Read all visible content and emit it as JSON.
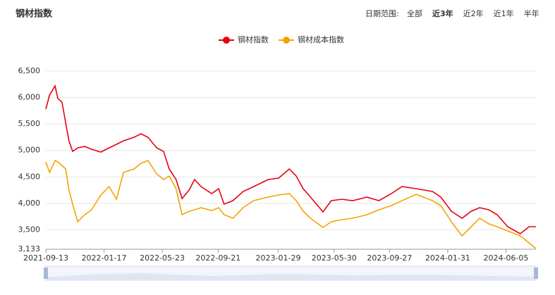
{
  "header": {
    "title": "钢材指数",
    "range_label": "日期范围:",
    "range_options": [
      "全部",
      "近3年",
      "近2年",
      "近1年",
      "半年"
    ],
    "active_option": 1
  },
  "chart_data": {
    "type": "line",
    "x": [
      "2021-09-13",
      "2021-09-21",
      "2021-10-03",
      "2021-10-09",
      "2021-10-18",
      "2021-10-26",
      "2021-11-02",
      "2021-11-10",
      "2021-11-21",
      "2021-12-06",
      "2021-12-21",
      "2022-01-10",
      "2022-01-28",
      "2022-02-13",
      "2022-02-28",
      "2022-03-23",
      "2022-04-07",
      "2022-04-22",
      "2022-05-11",
      "2022-05-26",
      "2022-06-07",
      "2022-06-22",
      "2022-07-05",
      "2022-07-20",
      "2022-08-01",
      "2022-08-15",
      "2022-09-07",
      "2022-09-22",
      "2022-10-04",
      "2022-10-23",
      "2022-11-14",
      "2022-12-07",
      "2023-01-07",
      "2023-01-30",
      "2023-02-22",
      "2023-03-09",
      "2023-03-24",
      "2023-04-09",
      "2023-05-06",
      "2023-05-24",
      "2023-06-16",
      "2023-07-09",
      "2023-08-09",
      "2023-09-04",
      "2023-10-01",
      "2023-10-24",
      "2023-11-24",
      "2023-12-29",
      "2024-01-16",
      "2024-02-08",
      "2024-03-02",
      "2024-03-22",
      "2024-04-09",
      "2024-04-29",
      "2024-05-17",
      "2024-06-09",
      "2024-07-06",
      "2024-07-25",
      "2024-08-09"
    ],
    "series": [
      {
        "name": "钢材指数",
        "color": "#e60012",
        "values": [
          5782,
          6048,
          6221,
          5981,
          5915,
          5515,
          5183,
          4983,
          5050,
          5076,
          5023,
          4970,
          5050,
          5116,
          5183,
          5249,
          5316,
          5249,
          5050,
          4983,
          4650,
          4451,
          4091,
          4251,
          4451,
          4318,
          4185,
          4278,
          3985,
          4051,
          4224,
          4318,
          4451,
          4477,
          4650,
          4517,
          4278,
          4118,
          3839,
          4051,
          4078,
          4051,
          4118,
          4051,
          4185,
          4318,
          4278,
          4224,
          4118,
          3852,
          3719,
          3852,
          3918,
          3878,
          3785,
          3559,
          3426,
          3559,
          3559
        ]
      },
      {
        "name": "钢材成本指数",
        "color": "#f5a300",
        "values": [
          4783,
          4584,
          4810,
          4783,
          4717,
          4650,
          4251,
          3985,
          3652,
          3785,
          3878,
          4158,
          4318,
          4078,
          4584,
          4650,
          4757,
          4810,
          4557,
          4451,
          4517,
          4278,
          3785,
          3852,
          3878,
          3918,
          3865,
          3918,
          3785,
          3719,
          3918,
          4051,
          4118,
          4158,
          4185,
          4051,
          3852,
          3719,
          3546,
          3652,
          3692,
          3719,
          3785,
          3878,
          3958,
          4051,
          4171,
          4051,
          3958,
          3652,
          3386,
          3559,
          3719,
          3612,
          3559,
          3479,
          3386,
          3253,
          3146
        ]
      }
    ],
    "xlim": [
      "2021-09-13",
      "2024-08-09"
    ],
    "xticks": [
      "2021-09-13",
      "2022-01-17",
      "2022-05-23",
      "2022-09-21",
      "2023-01-29",
      "2023-05-30",
      "2023-09-27",
      "2024-01-31",
      "2024-06-05"
    ],
    "ylim": [
      3133,
      6500
    ],
    "yticks": [
      {
        "value": 3133,
        "label": "3,133"
      },
      {
        "value": 3500,
        "label": "3,500"
      },
      {
        "value": 4000,
        "label": "4,000"
      },
      {
        "value": 4500,
        "label": "4,500"
      },
      {
        "value": 5000,
        "label": "5,000"
      },
      {
        "value": 5500,
        "label": "5,500"
      },
      {
        "value": 6000,
        "label": "6,000"
      },
      {
        "value": 6500,
        "label": "6,500"
      }
    ],
    "grid": true
  }
}
